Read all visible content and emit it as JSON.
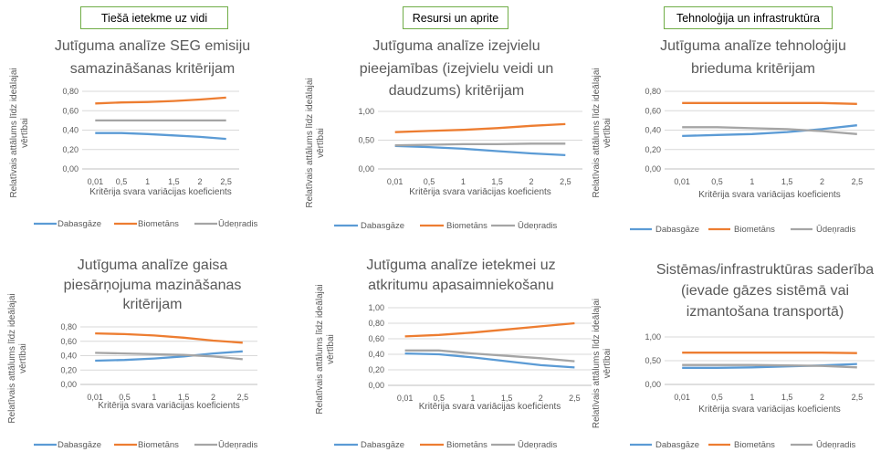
{
  "headers": [
    "Tiešā ietekme uz vidi",
    "Resursi un aprite",
    "Tehnoloģija un infrastruktūra"
  ],
  "colors": {
    "Dabasgāze": "#5b9bd5",
    "Biometāns": "#ed7d31",
    "Ūdeņradis": "#a5a5a5",
    "header_border": "#70ad47"
  },
  "chart_data": [
    {
      "type": "line",
      "title": [
        "Jutīguma analīze SEG emisiju",
        "samazināšanas kritērijam"
      ],
      "xlabel": "Kritērija svara variācijas koeficients",
      "ylabel": [
        "Relatīvais attālums līdz ideālajai",
        "vērtībai"
      ],
      "categories": [
        "0,01",
        "0,5",
        "1",
        "1,5",
        "2",
        "2,5"
      ],
      "yticks": [
        "0,00",
        "0,20",
        "0,40",
        "0,60",
        "0,80"
      ],
      "ylim": [
        0,
        0.8
      ],
      "series": [
        {
          "name": "Dabasgāze",
          "values": [
            0.37,
            0.37,
            0.36,
            0.345,
            0.33,
            0.31
          ]
        },
        {
          "name": "Biometāns",
          "values": [
            0.675,
            0.685,
            0.69,
            0.7,
            0.715,
            0.735
          ]
        },
        {
          "name": "Ūdeņradis",
          "values": [
            0.5,
            0.5,
            0.5,
            0.5,
            0.5,
            0.5
          ]
        }
      ]
    },
    {
      "type": "line",
      "title": [
        "Jutīguma analīze izejvielu",
        "pieejamības (izejvielu veidi un",
        "daudzums) kritērijam"
      ],
      "xlabel": "Kritērija svara variācijas koeficients",
      "ylabel": [
        "Relatīvais attālums līdz ideālajai",
        "vērtībai"
      ],
      "categories": [
        "0,01",
        "0,5",
        "1",
        "1,5",
        "2",
        "2,5"
      ],
      "yticks": [
        "0,00",
        "0,50",
        "1,00"
      ],
      "ylim": [
        0,
        1.0
      ],
      "series": [
        {
          "name": "Dabasgāze",
          "values": [
            0.4,
            0.38,
            0.35,
            0.31,
            0.27,
            0.24
          ]
        },
        {
          "name": "Biometāns",
          "values": [
            0.64,
            0.66,
            0.68,
            0.71,
            0.75,
            0.78
          ]
        },
        {
          "name": "Ūdeņradis",
          "values": [
            0.41,
            0.42,
            0.43,
            0.43,
            0.44,
            0.44
          ]
        }
      ]
    },
    {
      "type": "line",
      "title": [
        "Jutīguma analīze tehnoloģiju",
        "brieduma kritērijam"
      ],
      "xlabel": "Kritērija svara variācijas koeficients",
      "ylabel": [
        "Relatīvais attālums līdz ideālajai",
        "vērtībai"
      ],
      "categories": [
        "0,01",
        "0,5",
        "1",
        "1,5",
        "2",
        "2,5"
      ],
      "yticks": [
        "0,00",
        "0,20",
        "0,40",
        "0,60",
        "0,80"
      ],
      "ylim": [
        0,
        0.8
      ],
      "series": [
        {
          "name": "Dabasgāze",
          "values": [
            0.34,
            0.35,
            0.36,
            0.38,
            0.41,
            0.45
          ]
        },
        {
          "name": "Biometāns",
          "values": [
            0.68,
            0.68,
            0.68,
            0.68,
            0.68,
            0.67
          ]
        },
        {
          "name": "Ūdeņradis",
          "values": [
            0.43,
            0.43,
            0.42,
            0.41,
            0.39,
            0.36
          ]
        }
      ]
    },
    {
      "type": "line",
      "title": [
        "Jutīguma analīze gaisa",
        "piesārņojuma mazināšanas",
        "kritērijam"
      ],
      "xlabel": "Kritērija svara variācijas koeficients",
      "ylabel": [
        "Relatīvais attālums līdz ideālajai",
        "vērtībai"
      ],
      "categories": [
        "0,01",
        "0,5",
        "1",
        "1,5",
        "2",
        "2,5"
      ],
      "yticks": [
        "0,00",
        "0,20",
        "0,40",
        "0,60",
        "0,80"
      ],
      "ylim": [
        0,
        0.8
      ],
      "series": [
        {
          "name": "Dabasgāze",
          "values": [
            0.33,
            0.34,
            0.36,
            0.39,
            0.43,
            0.46
          ]
        },
        {
          "name": "Biometāns",
          "values": [
            0.71,
            0.7,
            0.68,
            0.65,
            0.61,
            0.58
          ]
        },
        {
          "name": "Ūdeņradis",
          "values": [
            0.44,
            0.43,
            0.42,
            0.41,
            0.39,
            0.35
          ]
        }
      ]
    },
    {
      "type": "line",
      "title": [
        "Jutīguma analīze ietekmei uz",
        "atkritumu apasaimniekošanu"
      ],
      "xlabel": "Kritērija svara variācijas koeficients",
      "ylabel": [
        "Relatīvais attālums līdz ideālajai",
        "vērtībai"
      ],
      "categories": [
        "0,01",
        "0,5",
        "1",
        "1,5",
        "2",
        "2,5"
      ],
      "yticks": [
        "0,00",
        "0,20",
        "0,40",
        "0,60",
        "0,80",
        "1,00"
      ],
      "ylim": [
        0,
        1.0
      ],
      "series": [
        {
          "name": "Dabasgāze",
          "values": [
            0.41,
            0.4,
            0.36,
            0.31,
            0.26,
            0.23
          ]
        },
        {
          "name": "Biometāns",
          "values": [
            0.63,
            0.65,
            0.68,
            0.72,
            0.76,
            0.8
          ]
        },
        {
          "name": "Ūdeņradis",
          "values": [
            0.45,
            0.45,
            0.41,
            0.38,
            0.35,
            0.31
          ]
        }
      ]
    },
    {
      "type": "line",
      "title": [
        "Sistēmas/infrastruktūras saderība",
        "(ievade gāzes sistēmā vai",
        "izmantošana transportā)"
      ],
      "xlabel": "Kritērija svara variācijas koeficients",
      "ylabel": [
        "Relatīvais attālums līdz ideālajai",
        "vērtībai"
      ],
      "categories": [
        "0,01",
        "0,5",
        "1",
        "1,5",
        "2",
        "2,5"
      ],
      "yticks": [
        "0,00",
        "0,50",
        "1,00"
      ],
      "ylim": [
        0,
        1.0
      ],
      "series": [
        {
          "name": "Dabasgāze",
          "values": [
            0.35,
            0.35,
            0.36,
            0.38,
            0.4,
            0.43
          ]
        },
        {
          "name": "Biometāns",
          "values": [
            0.67,
            0.67,
            0.67,
            0.67,
            0.67,
            0.66
          ]
        },
        {
          "name": "Ūdeņradis",
          "values": [
            0.41,
            0.41,
            0.41,
            0.4,
            0.39,
            0.36
          ]
        }
      ]
    }
  ]
}
